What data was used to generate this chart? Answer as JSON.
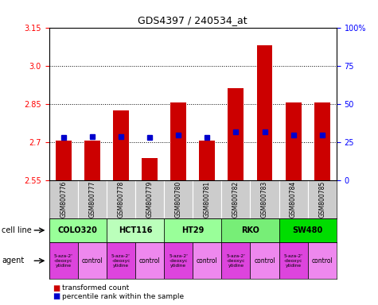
{
  "title": "GDS4397 / 240534_at",
  "samples": [
    "GSM800776",
    "GSM800777",
    "GSM800778",
    "GSM800779",
    "GSM800780",
    "GSM800781",
    "GSM800782",
    "GSM800783",
    "GSM800784",
    "GSM800785"
  ],
  "red_values": [
    2.705,
    2.705,
    2.825,
    2.635,
    2.855,
    2.705,
    2.91,
    3.08,
    2.855,
    2.855
  ],
  "blue_values": [
    2.718,
    2.72,
    2.722,
    2.716,
    2.728,
    2.718,
    2.738,
    2.738,
    2.728,
    2.728
  ],
  "ylim_min": 2.55,
  "ylim_max": 3.15,
  "yticks_left": [
    2.55,
    2.7,
    2.85,
    3.0,
    3.15
  ],
  "yticks_right_vals": [
    0,
    25,
    50,
    75,
    100
  ],
  "cell_lines": [
    {
      "label": "COLO320",
      "start": 0,
      "end": 2,
      "color": "#99ff99"
    },
    {
      "label": "HCT116",
      "start": 2,
      "end": 4,
      "color": "#bbffbb"
    },
    {
      "label": "HT29",
      "start": 4,
      "end": 6,
      "color": "#99ff99"
    },
    {
      "label": "RKO",
      "start": 6,
      "end": 8,
      "color": "#77ee77"
    },
    {
      "label": "SW480",
      "start": 8,
      "end": 10,
      "color": "#00dd00"
    }
  ],
  "agents": [
    {
      "label": "5-aza-2'\n-deoxyc\nytidine",
      "col": 0,
      "is_drug": true
    },
    {
      "label": "control",
      "col": 1,
      "is_drug": false
    },
    {
      "label": "5-aza-2'\n-deoxyc\nytidine",
      "col": 2,
      "is_drug": true
    },
    {
      "label": "control",
      "col": 3,
      "is_drug": false
    },
    {
      "label": "5-aza-2'\n-deoxyc\nytidine",
      "col": 4,
      "is_drug": true
    },
    {
      "label": "control",
      "col": 5,
      "is_drug": false
    },
    {
      "label": "5-aza-2'\n-deoxyc\nytidine",
      "col": 6,
      "is_drug": true
    },
    {
      "label": "control",
      "col": 7,
      "is_drug": false
    },
    {
      "label": "5-aza-2'\n-deoxyc\nytidine",
      "col": 8,
      "is_drug": true
    },
    {
      "label": "control",
      "col": 9,
      "is_drug": false
    }
  ],
  "drug_color": "#dd44dd",
  "control_color": "#ee88ee",
  "bar_color": "#cc0000",
  "dot_color": "#0000cc",
  "sample_bg": "#cccccc",
  "dotted_lines": [
    2.7,
    2.85,
    3.0
  ]
}
